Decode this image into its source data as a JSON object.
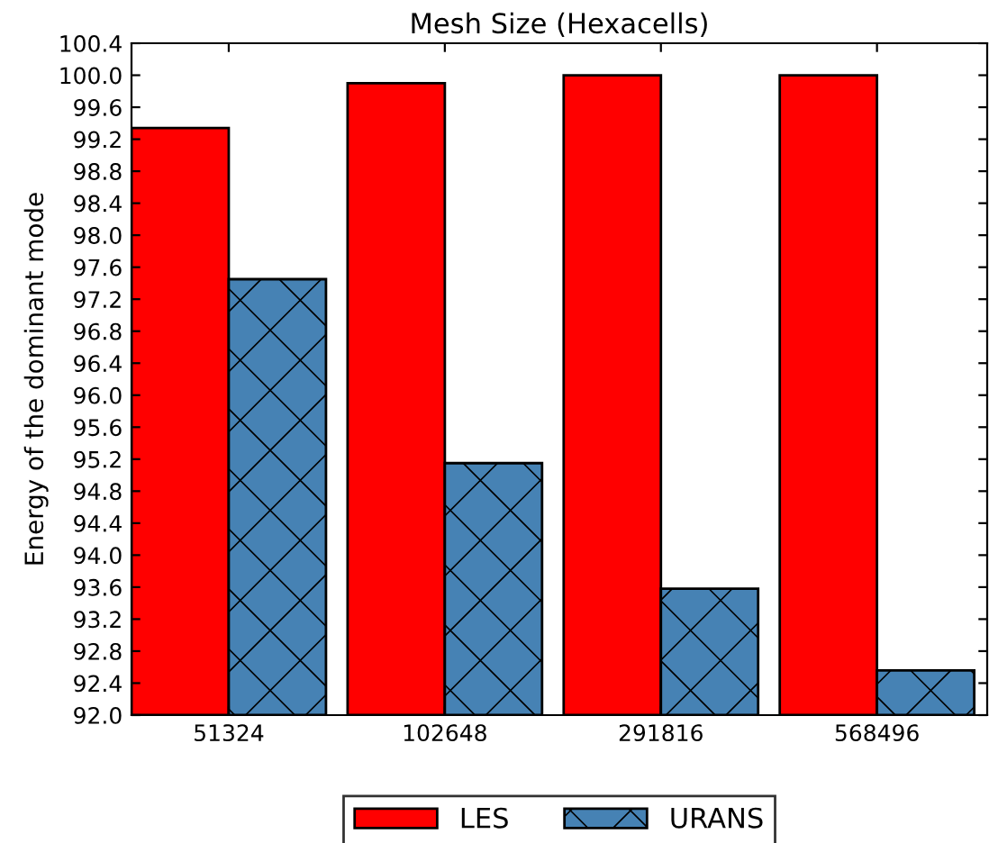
{
  "chart_data": {
    "type": "bar",
    "title": "Mesh Size (Hexacells)",
    "ylabel": "Energy of the dominant mode",
    "categories": [
      "51324",
      "102648",
      "291816",
      "568496"
    ],
    "series": [
      {
        "name": "LES",
        "color": "#ff0000",
        "values": [
          99.34,
          99.9,
          100.0,
          100.0
        ]
      },
      {
        "name": "URANS",
        "color": "#4682b4",
        "values": [
          97.45,
          95.15,
          93.58,
          92.56
        ]
      }
    ],
    "ylim": [
      92.0,
      100.4
    ],
    "yticks": [
      {
        "value": 92.0,
        "label": "92.0"
      },
      {
        "value": 92.4,
        "label": "92.4"
      },
      {
        "value": 92.8,
        "label": "92.8"
      },
      {
        "value": 93.2,
        "label": "93.2"
      },
      {
        "value": 93.6,
        "label": "93.6"
      },
      {
        "value": 94.0,
        "label": "94.0"
      },
      {
        "value": 94.4,
        "label": "94.4"
      },
      {
        "value": 94.8,
        "label": "94.8"
      },
      {
        "value": 95.2,
        "label": "95.2"
      },
      {
        "value": 95.6,
        "label": "95.6"
      },
      {
        "value": 96.0,
        "label": "96.0"
      },
      {
        "value": 96.4,
        "label": "96.4"
      },
      {
        "value": 96.8,
        "label": "96.8"
      },
      {
        "value": 97.2,
        "label": "97.2"
      },
      {
        "value": 97.6,
        "label": "97.6"
      },
      {
        "value": 98.0,
        "label": "98.0"
      },
      {
        "value": 98.4,
        "label": "98.4"
      },
      {
        "value": 98.8,
        "label": "98.8"
      },
      {
        "value": 99.2,
        "label": "99.2"
      },
      {
        "value": 99.6,
        "label": "99.6"
      },
      {
        "value": 100.0,
        "label": "100.0"
      },
      {
        "value": 100.4,
        "label": "100.4"
      }
    ],
    "grid": false,
    "legend": "bottom"
  }
}
